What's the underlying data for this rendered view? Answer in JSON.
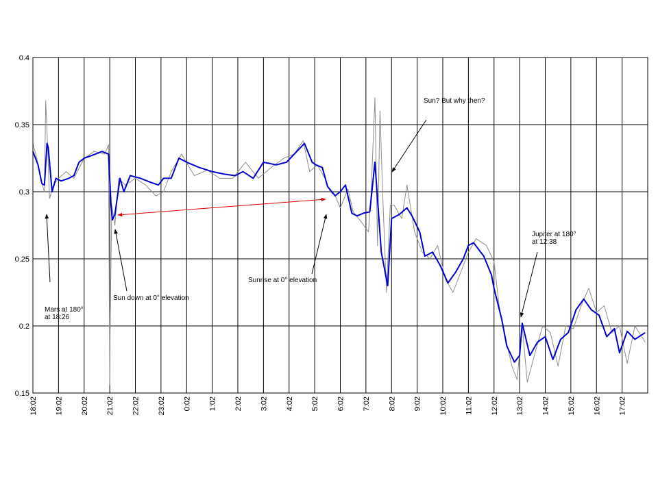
{
  "chart_data": {
    "type": "line",
    "ylim": [
      0.15,
      0.4
    ],
    "yticks": [
      "0.15",
      "0.2",
      "0.25",
      "0.3",
      "0.35",
      "0.4"
    ],
    "xlabels": [
      "18:02",
      "19:02",
      "20:02",
      "21:02",
      "22:02",
      "23:02",
      "0:02",
      "1:02",
      "2:02",
      "3:02",
      "4:02",
      "5:02",
      "6:02",
      "7:02",
      "8:02",
      "9:02",
      "10:02",
      "11:02",
      "12:02",
      "13:02",
      "14:02",
      "15:02",
      "16:02",
      "17:02"
    ],
    "grid": true,
    "colors": {
      "smoothed": "#0000cc",
      "raw": "#8c8c8c",
      "arrow_red": "#e00000",
      "arrow_black": "#000000"
    },
    "series": [
      {
        "role": "smoothed",
        "x": [
          18.0,
          18.2,
          18.35,
          18.45,
          18.55,
          18.6,
          18.75,
          18.9,
          19.1,
          19.4,
          19.6,
          19.8,
          20.0,
          20.3,
          20.7,
          20.95,
          21.05,
          21.1,
          21.2,
          21.4,
          21.55,
          21.8,
          22.2,
          22.6,
          22.9,
          23.1,
          23.4,
          23.7,
          24.0,
          24.5,
          25.0,
          25.5,
          25.9,
          26.2,
          26.6,
          27.0,
          27.5,
          27.9,
          28.3,
          28.6,
          28.9,
          29.05,
          29.3,
          29.5,
          29.8,
          30.0,
          30.2,
          30.45,
          30.65,
          30.9,
          31.15,
          31.35,
          31.6,
          31.85,
          32.0,
          32.3,
          32.6,
          32.8,
          33.1,
          33.3,
          33.6,
          33.9,
          34.2,
          34.5,
          34.8,
          35.0,
          35.2,
          35.6,
          35.9,
          36.0,
          36.3,
          36.5,
          36.8,
          37.0,
          37.1,
          37.4,
          37.7,
          38.0,
          38.3,
          38.6,
          38.9,
          39.2,
          39.5,
          39.8,
          40.1,
          40.4,
          40.7,
          40.9,
          41.2,
          41.5,
          41.9
        ],
        "y": [
          0.33,
          0.32,
          0.306,
          0.305,
          0.336,
          0.333,
          0.3,
          0.31,
          0.308,
          0.31,
          0.312,
          0.322,
          0.325,
          0.327,
          0.33,
          0.328,
          0.29,
          0.279,
          0.283,
          0.31,
          0.3,
          0.312,
          0.31,
          0.307,
          0.305,
          0.31,
          0.31,
          0.325,
          0.322,
          0.318,
          0.315,
          0.313,
          0.312,
          0.315,
          0.31,
          0.322,
          0.32,
          0.322,
          0.33,
          0.336,
          0.322,
          0.32,
          0.318,
          0.304,
          0.297,
          0.3,
          0.305,
          0.284,
          0.282,
          0.284,
          0.285,
          0.322,
          0.255,
          0.23,
          0.28,
          0.283,
          0.288,
          0.282,
          0.27,
          0.252,
          0.255,
          0.245,
          0.232,
          0.24,
          0.25,
          0.26,
          0.262,
          0.252,
          0.238,
          0.228,
          0.205,
          0.185,
          0.173,
          0.178,
          0.202,
          0.178,
          0.188,
          0.192,
          0.175,
          0.19,
          0.195,
          0.212,
          0.22,
          0.212,
          0.208,
          0.192,
          0.198,
          0.18,
          0.196,
          0.19,
          0.195
        ]
      },
      {
        "role": "raw",
        "x": [
          18.0,
          18.15,
          18.3,
          18.45,
          18.5,
          18.55,
          18.65,
          18.8,
          19.0,
          19.3,
          19.6,
          20.0,
          20.4,
          20.8,
          20.95,
          21.0,
          21.02,
          21.08,
          21.2,
          21.35,
          21.6,
          22.0,
          22.4,
          22.8,
          23.1,
          23.4,
          23.8,
          24.3,
          24.8,
          25.3,
          25.8,
          26.3,
          26.8,
          27.3,
          27.8,
          28.2,
          28.55,
          28.8,
          29.1,
          29.4,
          29.6,
          29.8,
          30.0,
          30.3,
          30.5,
          30.8,
          31.1,
          31.2,
          31.35,
          31.45,
          31.55,
          31.65,
          31.8,
          31.95,
          32.1,
          32.4,
          32.6,
          32.9,
          33.2,
          33.5,
          33.8,
          34.1,
          34.4,
          34.7,
          35.0,
          35.3,
          35.7,
          36.0,
          36.2,
          36.4,
          36.7,
          36.9,
          37.0,
          37.1,
          37.3,
          37.6,
          37.9,
          38.2,
          38.5,
          38.8,
          39.1,
          39.4,
          39.7,
          40.0,
          40.3,
          40.6,
          40.9,
          41.2,
          41.5,
          41.9
        ],
        "y": [
          0.336,
          0.325,
          0.31,
          0.3,
          0.368,
          0.345,
          0.295,
          0.305,
          0.31,
          0.315,
          0.31,
          0.325,
          0.33,
          0.328,
          0.335,
          0.156,
          0.21,
          0.29,
          0.275,
          0.31,
          0.305,
          0.31,
          0.305,
          0.297,
          0.3,
          0.315,
          0.328,
          0.312,
          0.316,
          0.31,
          0.31,
          0.322,
          0.31,
          0.318,
          0.325,
          0.328,
          0.338,
          0.315,
          0.32,
          0.31,
          0.3,
          0.297,
          0.288,
          0.302,
          0.285,
          0.278,
          0.27,
          0.298,
          0.37,
          0.26,
          0.36,
          0.3,
          0.225,
          0.29,
          0.29,
          0.28,
          0.305,
          0.27,
          0.255,
          0.25,
          0.26,
          0.235,
          0.225,
          0.24,
          0.255,
          0.265,
          0.26,
          0.248,
          0.215,
          0.195,
          0.17,
          0.16,
          0.18,
          0.2,
          0.158,
          0.18,
          0.2,
          0.195,
          0.17,
          0.2,
          0.198,
          0.215,
          0.228,
          0.21,
          0.215,
          0.195,
          0.2,
          0.172,
          0.2,
          0.188
        ]
      }
    ],
    "annotations": [
      {
        "id": "mars",
        "lines": [
          "Mars at 180°",
          "at 18:26"
        ]
      },
      {
        "id": "sundown",
        "lines": [
          "Sun down at 0° elevation"
        ]
      },
      {
        "id": "sunrise",
        "lines": [
          "Sunrise at 0° elevation"
        ]
      },
      {
        "id": "sun",
        "lines": [
          "Sun? But why then?"
        ]
      },
      {
        "id": "jupiter",
        "lines": [
          "Jupiter at 180°",
          "at 12:38"
        ]
      }
    ]
  }
}
